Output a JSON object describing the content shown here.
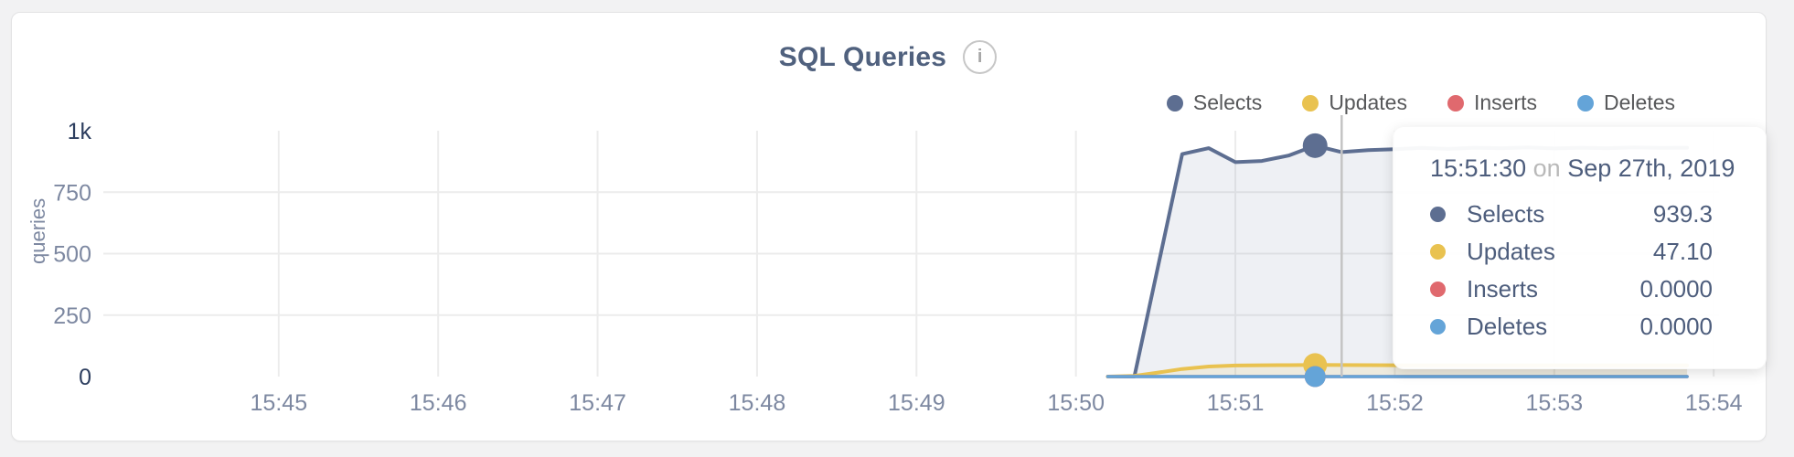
{
  "card": {
    "title": "SQL Queries",
    "info_icon_glyph": "i"
  },
  "chart_data": {
    "type": "area",
    "title": "SQL Queries",
    "xlabel": "",
    "ylabel": "queries",
    "ylim": [
      0,
      1000
    ],
    "grid": true,
    "legend_position": "top-right",
    "x_domain": [
      "15:43:54",
      "15:54:02"
    ],
    "x_ticks": [
      {
        "time": "15:45:00",
        "label": "15:45"
      },
      {
        "time": "15:46:00",
        "label": "15:46"
      },
      {
        "time": "15:47:00",
        "label": "15:47"
      },
      {
        "time": "15:48:00",
        "label": "15:48"
      },
      {
        "time": "15:49:00",
        "label": "15:49"
      },
      {
        "time": "15:50:00",
        "label": "15:50"
      },
      {
        "time": "15:51:00",
        "label": "15:51"
      },
      {
        "time": "15:52:00",
        "label": "15:52"
      },
      {
        "time": "15:53:00",
        "label": "15:53"
      },
      {
        "time": "15:54:00",
        "label": "15:54"
      }
    ],
    "y_ticks": [
      {
        "value": 1000,
        "label": "1k",
        "emphasis": true,
        "grid": false
      },
      {
        "value": 750,
        "label": "750",
        "emphasis": false,
        "grid": true
      },
      {
        "value": 500,
        "label": "500",
        "emphasis": false,
        "grid": true
      },
      {
        "value": 250,
        "label": "250",
        "emphasis": false,
        "grid": true
      },
      {
        "value": 0,
        "label": "0",
        "emphasis": true,
        "grid": false
      }
    ],
    "series": [
      {
        "name": "Selects",
        "color": "#5d6e91",
        "fill": "rgba(93,110,145,0.10)",
        "line_width": 4,
        "dot_radius": 13.5,
        "points": [
          [
            "15:50:12",
            0
          ],
          [
            "15:50:22",
            0
          ],
          [
            "15:50:40",
            905
          ],
          [
            "15:50:50",
            929
          ],
          [
            "15:51:00",
            872
          ],
          [
            "15:51:10",
            877
          ],
          [
            "15:51:20",
            899
          ],
          [
            "15:51:30",
            939.3
          ],
          [
            "15:51:40",
            913
          ],
          [
            "15:51:50",
            921
          ],
          [
            "15:52:00",
            925
          ],
          [
            "15:52:10",
            930
          ],
          [
            "15:52:20",
            926
          ],
          [
            "15:52:30",
            931
          ],
          [
            "15:52:40",
            929
          ],
          [
            "15:52:50",
            932
          ],
          [
            "15:53:00",
            928
          ],
          [
            "15:53:10",
            931
          ],
          [
            "15:53:20",
            929
          ],
          [
            "15:53:30",
            932
          ],
          [
            "15:53:40",
            930
          ],
          [
            "15:53:50",
            931
          ]
        ]
      },
      {
        "name": "Updates",
        "color": "#e9c250",
        "fill": "rgba(233,194,80,0.13)",
        "line_width": 4,
        "dot_radius": 13,
        "points": [
          [
            "15:50:12",
            0
          ],
          [
            "15:50:22",
            3
          ],
          [
            "15:50:30",
            15
          ],
          [
            "15:50:40",
            31
          ],
          [
            "15:50:50",
            41
          ],
          [
            "15:51:00",
            45
          ],
          [
            "15:51:10",
            46
          ],
          [
            "15:51:20",
            46.5
          ],
          [
            "15:51:30",
            47.1
          ],
          [
            "15:51:40",
            47
          ],
          [
            "15:51:50",
            46.5
          ],
          [
            "15:52:00",
            46
          ],
          [
            "15:52:30",
            45.5
          ],
          [
            "15:53:00",
            46
          ],
          [
            "15:53:30",
            45.5
          ],
          [
            "15:53:50",
            45.5
          ]
        ]
      },
      {
        "name": "Inserts",
        "color": "#e0696e",
        "fill": "rgba(224,105,110,0)",
        "line_width": 3.5,
        "dot_radius": 11.5,
        "points": [
          [
            "15:50:12",
            0
          ],
          [
            "15:53:50",
            0
          ]
        ]
      },
      {
        "name": "Deletes",
        "color": "#64a4d8",
        "fill": "rgba(100,164,216,0)",
        "line_width": 3.5,
        "dot_radius": 11.5,
        "points": [
          [
            "15:50:12",
            0
          ],
          [
            "15:53:50",
            0
          ]
        ]
      }
    ],
    "highlight": {
      "time": "15:51:30",
      "crosshair_time": "15:51:40"
    },
    "colors": {
      "grid": "#ececec",
      "crosshair": "#c4c4c4",
      "tick_label": "#7d88a1",
      "tick_label_emphasis": "#2d3e5f"
    }
  },
  "tooltip": {
    "time": "15:51:30",
    "connector": "on",
    "date": "Sep 27th, 2019",
    "rows": [
      {
        "series": "Selects",
        "color": "#5d6e91",
        "value": "939.3"
      },
      {
        "series": "Updates",
        "color": "#e9c250",
        "value": "47.10"
      },
      {
        "series": "Inserts",
        "color": "#e0696e",
        "value": "0.0000"
      },
      {
        "series": "Deletes",
        "color": "#64a4d8",
        "value": "0.0000"
      }
    ]
  }
}
